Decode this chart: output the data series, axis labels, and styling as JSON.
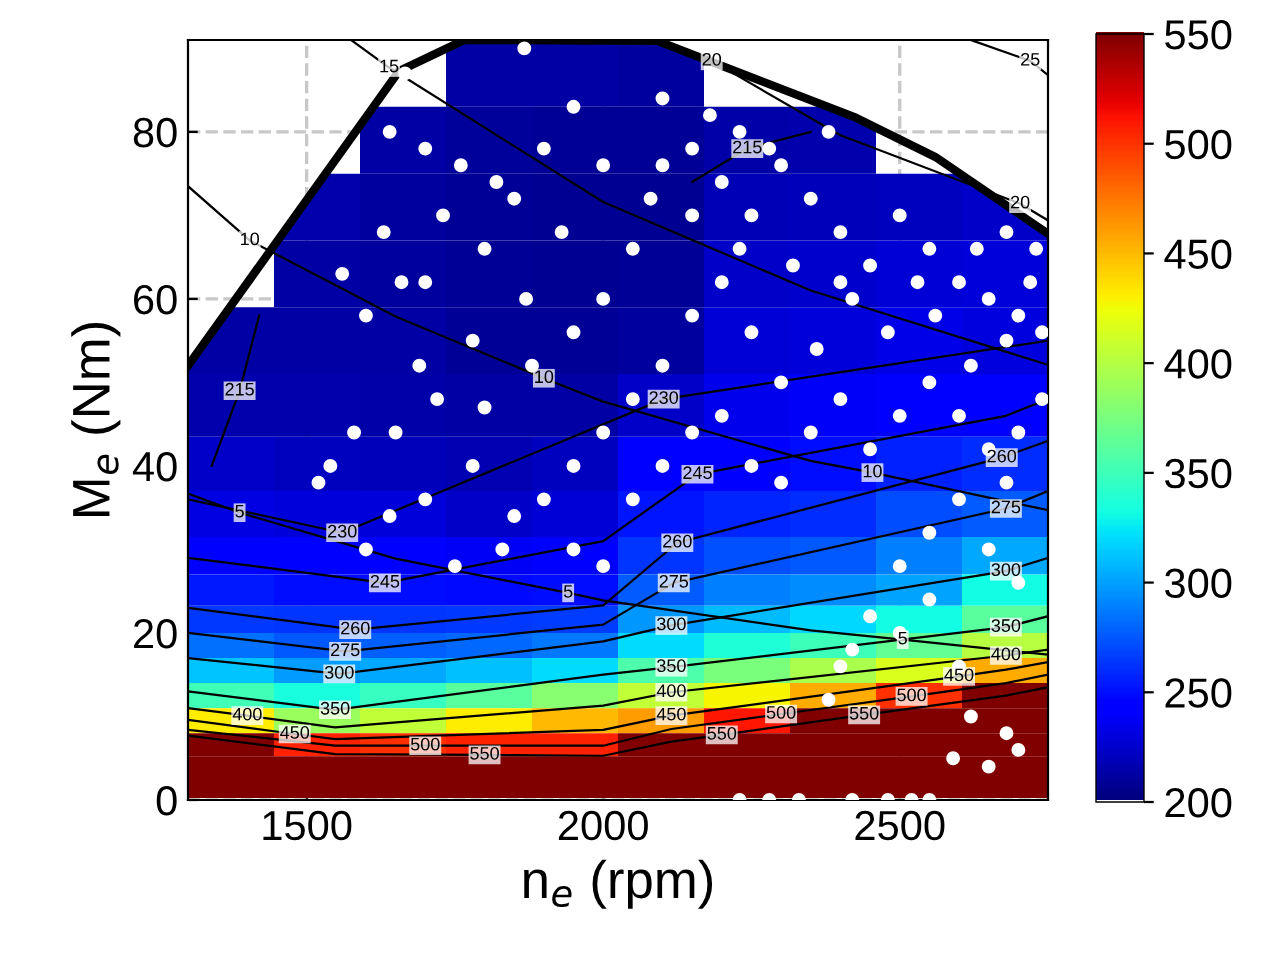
{
  "chart_data": {
    "type": "heatmap",
    "xlabel": "n$_{e}$ (rpm)",
    "ylabel": "M$_{e}$ (Nm)",
    "xlim": [
      1300,
      2750
    ],
    "ylim": [
      0,
      91
    ],
    "xticks": [
      1500,
      2000,
      2500
    ],
    "yticks": [
      0,
      20,
      40,
      60,
      80
    ],
    "grid": true,
    "clim": [
      200,
      550
    ],
    "cticks": [
      200,
      250,
      300,
      350,
      400,
      450,
      500,
      550
    ],
    "x": [
      1372.5,
      1517.5,
      1662.5,
      1807.5,
      1952.5,
      2097.5,
      2242.5,
      2387.5,
      2532.5,
      2677.5
    ],
    "y": [
      87,
      79,
      71,
      63,
      55,
      47,
      40,
      34,
      29,
      25,
      21.5,
      18.5,
      15.5,
      12.5,
      9.5,
      6.5,
      4,
      1.5
    ],
    "cells": [
      [
        null,
        null,
        null,
        212,
        211,
        210,
        null,
        null,
        null,
        null
      ],
      [
        null,
        null,
        212,
        209,
        208,
        207,
        213,
        214,
        null,
        null
      ],
      [
        null,
        215,
        210,
        207,
        206,
        206,
        217,
        219,
        220,
        222
      ],
      [
        null,
        212,
        210,
        207,
        206,
        207,
        222,
        224,
        226,
        228
      ],
      [
        212,
        212,
        211,
        208,
        208,
        210,
        226,
        228,
        232,
        230
      ],
      [
        215,
        214,
        213,
        211,
        212,
        222,
        233,
        237,
        242,
        245
      ],
      [
        222,
        220,
        218,
        216,
        220,
        240,
        245,
        249,
        255,
        260
      ],
      [
        231,
        228,
        228,
        222,
        226,
        251,
        257,
        260,
        270,
        276
      ],
      [
        243,
        240,
        241,
        236,
        240,
        262,
        272,
        275,
        288,
        302
      ],
      [
        253,
        249,
        248,
        247,
        249,
        276,
        288,
        292,
        300,
        330
      ],
      [
        264,
        262,
        262,
        263,
        265,
        296,
        309,
        318,
        330,
        360
      ],
      [
        283,
        274,
        277,
        280,
        285,
        320,
        336,
        348,
        365,
        400
      ],
      [
        312,
        298,
        302,
        310,
        320,
        355,
        374,
        395,
        415,
        455
      ],
      [
        350,
        333,
        345,
        360,
        380,
        405,
        427,
        455,
        500,
        550
      ],
      [
        430,
        388,
        405,
        430,
        450,
        460,
        510,
        550,
        550,
        550
      ],
      [
        550,
        505,
        500,
        505,
        505,
        550,
        550,
        550,
        550,
        550
      ],
      [
        550,
        550,
        550,
        550,
        550,
        550,
        550,
        550,
        550,
        550
      ],
      [
        550,
        550,
        550,
        550,
        550,
        550,
        550,
        550,
        550,
        550
      ]
    ],
    "series": [
      {
        "type": "line",
        "color": "#000000",
        "x": [
          1300,
          1656,
          1766,
          2091,
          2426,
          2560,
          2750
        ],
        "values": [
          52,
          87.3,
          91,
          90.9,
          81.7,
          77,
          67.8
        ]
      },
      {
        "type": "line",
        "color": "#000000",
        "x": [
          1300,
          1387,
          1650,
          1941,
          2000,
          2350,
          2505,
          2750
        ],
        "values": [
          36.7,
          34.4,
          28.9,
          24.8,
          23.9,
          20.3,
          19.2,
          17.4
        ]
      },
      {
        "type": "line",
        "color": "#000000",
        "x": [
          1300,
          1404,
          1650,
          1900,
          2000,
          2350,
          2454,
          2750
        ],
        "values": [
          73.5,
          67,
          57.9,
          50.5,
          47.7,
          40.6,
          39.2,
          34.7
        ]
      },
      {
        "type": "line",
        "color": "#000000",
        "x": [
          1575,
          1639,
          2000,
          2350,
          2750
        ],
        "values": [
          91,
          87.7,
          71.6,
          61,
          52.1
        ]
      },
      {
        "type": "line",
        "color": "#000000",
        "x": [
          2100,
          2183,
          2400,
          2703,
          2750
        ],
        "values": [
          91,
          88.5,
          79.6,
          71.4,
          69.4
        ]
      },
      {
        "type": "line",
        "color": "#000000",
        "x": [
          2620,
          2720,
          2750
        ],
        "values": [
          91,
          88.5,
          86.8
        ]
      },
      {
        "type": "line",
        "color": "#000000",
        "x": [
          1340,
          1387,
          1420
        ],
        "values": [
          40,
          49,
          58
        ]
      },
      {
        "type": "line",
        "color": "#000000",
        "x": [
          2150,
          2243,
          2350
        ],
        "values": [
          74,
          78,
          80
        ]
      },
      {
        "type": "line",
        "color": "#000000",
        "x": [
          1300,
          1560,
          2102,
          2750
        ],
        "values": [
          36,
          32,
          48,
          55
        ]
      },
      {
        "type": "line",
        "color": "#000000",
        "x": [
          1300,
          1632,
          2000,
          2159,
          2679,
          2750
        ],
        "values": [
          29,
          26,
          31,
          39,
          46,
          48
        ]
      },
      {
        "type": "line",
        "color": "#000000",
        "x": [
          1300,
          1582,
          2000,
          2125,
          2672,
          2750
        ],
        "values": [
          23,
          20.4,
          23.3,
          30.8,
          41,
          43
        ]
      },
      {
        "type": "line",
        "color": "#000000",
        "x": [
          1300,
          1565,
          2000,
          2119,
          2679,
          2750
        ],
        "values": [
          20,
          17.8,
          21,
          26,
          34.9,
          37
        ]
      },
      {
        "type": "line",
        "color": "#000000",
        "x": [
          1300,
          1555,
          2000,
          2115,
          2679,
          2750
        ],
        "values": [
          17,
          15.1,
          19,
          20.9,
          27.4,
          29
        ]
      },
      {
        "type": "line",
        "color": "#000000",
        "x": [
          1300,
          1548,
          2000,
          2115,
          2679,
          2750
        ],
        "values": [
          13,
          10.8,
          15,
          15.9,
          20.7,
          22
        ]
      },
      {
        "type": "line",
        "color": "#000000",
        "x": [
          1300,
          1400,
          1548,
          2000,
          2115,
          2679,
          2750
        ],
        "values": [
          11,
          10.1,
          8.7,
          11.3,
          12.9,
          17.3,
          18
        ]
      },
      {
        "type": "line",
        "color": "#000000",
        "x": [
          1300,
          1480,
          1548,
          2000,
          2115,
          2600,
          2679,
          2750
        ],
        "values": [
          9.6,
          7.9,
          7.3,
          8.4,
          10.1,
          14.8,
          15.6,
          16.5
        ]
      },
      {
        "type": "line",
        "color": "#000000",
        "x": [
          1300,
          1548,
          1700,
          2000,
          2115,
          2300,
          2520,
          2679,
          2750
        ],
        "values": [
          8.4,
          6.5,
          6.5,
          6.5,
          8.5,
          10.3,
          12.4,
          14,
          15
        ]
      },
      {
        "type": "line",
        "color": "#000000",
        "x": [
          1300,
          1548,
          1800,
          2000,
          2115,
          2200,
          2440,
          2679,
          2750
        ],
        "values": [
          7.7,
          5.5,
          5.4,
          5.3,
          7,
          7.8,
          10.2,
          12.5,
          13.5
        ]
      },
      {
        "type": "scatter",
        "color": "#ffffff",
        "marker": "circle",
        "x": [
          1867,
          1666,
          1640,
          1700,
          1760,
          1820,
          1730,
          1630,
          1660,
          1560,
          1600,
          1700,
          1800,
          1850,
          1900,
          1950,
          2000,
          1930,
          1870,
          1780,
          1690,
          1580,
          1540,
          1520,
          1650,
          1720,
          1800,
          1880,
          1950,
          2000,
          2050,
          2080,
          2100,
          2150,
          2200,
          2250,
          2300,
          2350,
          2400,
          2450,
          2500,
          2550,
          2600,
          2650,
          2700,
          2740,
          2720,
          2680,
          2620,
          2560,
          2480,
          2420,
          2360,
          2300,
          2250,
          2200,
          2150,
          2100,
          2050,
          2000,
          1950,
          1900,
          1850,
          1780,
          1700,
          1640,
          1600,
          1750,
          1830,
          1950,
          2000,
          2050,
          2100,
          2150,
          2200,
          2250,
          2300,
          2350,
          2400,
          2450,
          2500,
          2550,
          2600,
          2650,
          2700,
          2740,
          2680,
          2600,
          2550,
          2500,
          2450,
          2420,
          2500,
          2550,
          2600,
          2650,
          2700,
          2620,
          2680,
          2650,
          2700,
          2590,
          2400,
          2380,
          2230,
          2280,
          2330,
          2420,
          2480,
          2520,
          2550,
          2100,
          2180,
          2230,
          2280,
          2380,
          2150,
          2230,
          2320,
          2400,
          2530,
          2630,
          2730,
          2680
        ],
        "values": [
          90,
          87,
          80,
          78,
          76,
          74,
          70,
          68,
          62,
          63,
          58,
          62,
          66,
          72,
          78,
          83,
          76,
          68,
          60,
          55,
          52,
          44,
          40,
          38,
          44,
          48,
          47,
          52,
          56,
          60,
          66,
          72,
          76,
          78,
          74,
          70,
          76,
          72,
          68,
          64,
          70,
          66,
          62,
          60,
          58,
          56,
          62,
          55,
          52,
          58,
          56,
          60,
          54,
          50,
          56,
          62,
          58,
          52,
          48,
          44,
          40,
          36,
          34,
          40,
          36,
          34,
          30,
          28,
          30,
          30,
          28,
          36,
          40,
          44,
          46,
          40,
          38,
          44,
          48,
          42,
          46,
          50,
          46,
          42,
          44,
          48,
          38,
          36,
          32,
          28,
          22,
          18,
          20,
          24,
          16,
          30,
          26,
          10,
          8,
          4,
          6,
          5,
          16,
          12,
          0,
          0,
          0,
          0,
          0,
          0,
          0,
          84,
          82,
          80,
          78,
          80,
          70,
          66,
          64,
          62,
          62,
          66,
          66,
          68
        ]
      }
    ],
    "annotations": [
      {
        "text": "215",
        "x": 1387,
        "y": 49
      },
      {
        "text": "215",
        "x": 2243,
        "y": 78
      },
      {
        "text": "230",
        "x": 1560,
        "y": 32
      },
      {
        "text": "230",
        "x": 2102,
        "y": 48
      },
      {
        "text": "245",
        "x": 1632,
        "y": 26
      },
      {
        "text": "245",
        "x": 2159,
        "y": 39
      },
      {
        "text": "260",
        "x": 1582,
        "y": 20.4
      },
      {
        "text": "260",
        "x": 2125,
        "y": 30.8
      },
      {
        "text": "260",
        "x": 2672,
        "y": 41
      },
      {
        "text": "275",
        "x": 1565,
        "y": 17.8
      },
      {
        "text": "275",
        "x": 2119,
        "y": 26
      },
      {
        "text": "275",
        "x": 2679,
        "y": 34.9
      },
      {
        "text": "300",
        "x": 1555,
        "y": 15.1
      },
      {
        "text": "300",
        "x": 2115,
        "y": 20.9
      },
      {
        "text": "300",
        "x": 2679,
        "y": 27.4
      },
      {
        "text": "350",
        "x": 1548,
        "y": 10.8
      },
      {
        "text": "350",
        "x": 2115,
        "y": 15.9
      },
      {
        "text": "350",
        "x": 2679,
        "y": 20.7
      },
      {
        "text": "400",
        "x": 1400,
        "y": 10.1
      },
      {
        "text": "400",
        "x": 2115,
        "y": 12.9
      },
      {
        "text": "400",
        "x": 2679,
        "y": 17.3
      },
      {
        "text": "450",
        "x": 1480,
        "y": 7.9
      },
      {
        "text": "450",
        "x": 2115,
        "y": 10.1
      },
      {
        "text": "450",
        "x": 2600,
        "y": 14.8
      },
      {
        "text": "500",
        "x": 1700,
        "y": 6.5
      },
      {
        "text": "500",
        "x": 2300,
        "y": 10.3
      },
      {
        "text": "500",
        "x": 2520,
        "y": 12.4
      },
      {
        "text": "550",
        "x": 1800,
        "y": 5.4
      },
      {
        "text": "550",
        "x": 2200,
        "y": 7.8
      },
      {
        "text": "550",
        "x": 2440,
        "y": 10.2
      },
      {
        "text": "5",
        "x": 1387,
        "y": 34.4
      },
      {
        "text": "5",
        "x": 1941,
        "y": 24.8
      },
      {
        "text": "5",
        "x": 2505,
        "y": 19.2
      },
      {
        "text": "10",
        "x": 1404,
        "y": 67
      },
      {
        "text": "10",
        "x": 1900,
        "y": 50.5
      },
      {
        "text": "10",
        "x": 2454,
        "y": 39.2
      },
      {
        "text": "15",
        "x": 1639,
        "y": 87.7
      },
      {
        "text": "20",
        "x": 2183,
        "y": 88.5
      },
      {
        "text": "20",
        "x": 2703,
        "y": 71.4
      },
      {
        "text": "25",
        "x": 2720,
        "y": 88.5
      }
    ]
  }
}
